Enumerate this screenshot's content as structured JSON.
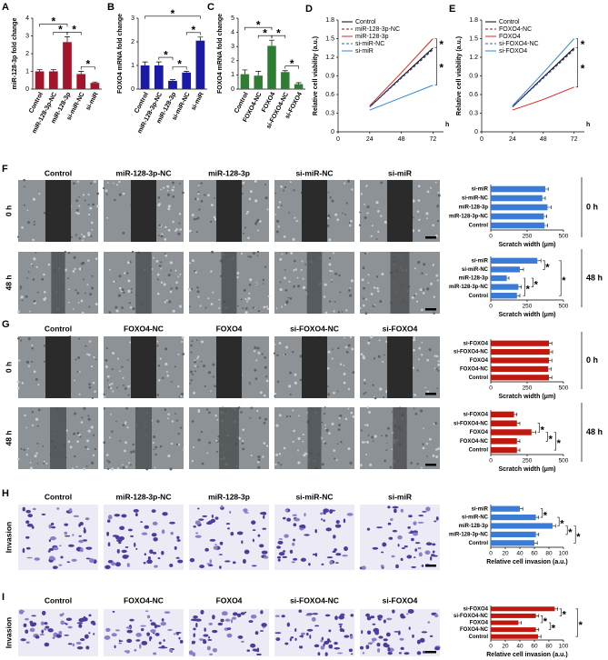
{
  "chart_data": [
    {
      "type": "bar",
      "panel": "A",
      "ylabel": "miR-128-3p fold change",
      "categories": [
        "Control",
        "miR-128-3p-NC",
        "miR-128-3p",
        "si-miR-NC",
        "si-miR"
      ],
      "values": [
        1.0,
        1.0,
        2.65,
        0.85,
        0.35
      ],
      "errors": [
        0.1,
        0.1,
        0.3,
        0.15,
        0.05
      ],
      "color": "#a3152a",
      "ylim": [
        0,
        4
      ],
      "yticks": [
        0,
        1,
        2,
        3,
        4
      ],
      "annotations": [
        "*",
        "*",
        "*",
        "*"
      ]
    },
    {
      "type": "bar",
      "panel": "B",
      "ylabel": "FOXO4 mRNA fold change",
      "categories": [
        "Control",
        "miR-128-3p-NC",
        "miR-128-3p",
        "si-miR-NC",
        "si-miR"
      ],
      "values": [
        1.0,
        1.0,
        0.35,
        0.7,
        2.05
      ],
      "errors": [
        0.15,
        0.15,
        0.05,
        0.05,
        0.15
      ],
      "color": "#1a1aa6",
      "ylim": [
        0,
        3
      ],
      "yticks": [
        0,
        1,
        2,
        3
      ],
      "annotations": [
        "*",
        "*",
        "*",
        "*"
      ]
    },
    {
      "type": "bar",
      "panel": "C",
      "ylabel": "FOXO4 mRNA fold change",
      "categories": [
        "Control",
        "FOXO4-NC",
        "FOXO4",
        "si-FOXO4-NC",
        "si-FOXO4"
      ],
      "values": [
        1.05,
        0.95,
        3.05,
        1.2,
        0.35
      ],
      "errors": [
        0.3,
        0.3,
        0.4,
        0.1,
        0.1
      ],
      "color": "#2e7d32",
      "ylim": [
        0,
        5
      ],
      "yticks": [
        0,
        1,
        2,
        3,
        4,
        5
      ],
      "annotations": [
        "*",
        "*",
        "*",
        "*"
      ]
    },
    {
      "type": "line",
      "panel": "D",
      "ylabel": "Relative cell viability (a.u.)",
      "xlabel": "h",
      "x": [
        24,
        48,
        72
      ],
      "xlim": [
        0,
        80
      ],
      "xticks": [
        0,
        24,
        48,
        72
      ],
      "ylim": [
        0,
        1.8
      ],
      "yticks": [
        0,
        0.3,
        0.6,
        0.9,
        1.2,
        1.5,
        1.8
      ],
      "series": [
        {
          "name": "Control",
          "color": "#000000",
          "dashed": false,
          "values": [
            0.4,
            0.88,
            1.35
          ]
        },
        {
          "name": "miR-128-3p-NC",
          "color": "#8b1a1a",
          "dashed": true,
          "values": [
            0.4,
            0.87,
            1.33
          ]
        },
        {
          "name": "miR-128-3p",
          "color": "#e02020",
          "dashed": false,
          "values": [
            0.42,
            0.95,
            1.5
          ]
        },
        {
          "name": "si-miR-NC",
          "color": "#1f5fbf",
          "dashed": true,
          "values": [
            0.4,
            0.86,
            1.32
          ]
        },
        {
          "name": "si-miR",
          "color": "#2e86de",
          "dashed": false,
          "values": [
            0.35,
            0.55,
            0.75
          ]
        }
      ],
      "annotations": [
        "*",
        "*"
      ]
    },
    {
      "type": "line",
      "panel": "E",
      "ylabel": "Relative cell viability (a.u.)",
      "xlabel": "h",
      "x": [
        24,
        48,
        72
      ],
      "xlim": [
        0,
        80
      ],
      "xticks": [
        0,
        24,
        48,
        72
      ],
      "ylim": [
        0,
        1.8
      ],
      "yticks": [
        0,
        0.3,
        0.6,
        0.9,
        1.2,
        1.5,
        1.8
      ],
      "series": [
        {
          "name": "Control",
          "color": "#000000",
          "dashed": false,
          "values": [
            0.4,
            0.88,
            1.35
          ]
        },
        {
          "name": "FOXO4-NC",
          "color": "#8b1a1a",
          "dashed": true,
          "values": [
            0.4,
            0.87,
            1.33
          ]
        },
        {
          "name": "FOXO4",
          "color": "#e02020",
          "dashed": false,
          "values": [
            0.35,
            0.52,
            0.72
          ]
        },
        {
          "name": "si-FOXO4-NC",
          "color": "#1f5fbf",
          "dashed": true,
          "values": [
            0.4,
            0.86,
            1.32
          ]
        },
        {
          "name": "si-FOXO4",
          "color": "#2e86de",
          "dashed": false,
          "values": [
            0.42,
            0.95,
            1.5
          ]
        }
      ],
      "annotations": [
        "*",
        "*"
      ]
    },
    {
      "type": "hbar",
      "side_label": "0 h",
      "xlabel": "Scratch width (μm)",
      "categories": [
        "Control",
        "miR-128-3p-NC",
        "miR-128-3p",
        "si-miR-NC",
        "si-miR"
      ],
      "values": [
        370,
        365,
        390,
        355,
        375
      ],
      "errors": [
        20,
        20,
        25,
        20,
        20
      ],
      "color": "#3a7bd5",
      "xlim": [
        0,
        500
      ],
      "xticks": [
        0,
        250,
        500
      ],
      "annotations": []
    },
    {
      "type": "hbar",
      "side_label": "48 h",
      "xlabel": "Scratch width (μm)",
      "categories": [
        "Control",
        "miR-128-3p-NC",
        "miR-128-3p",
        "si-miR-NC",
        "si-miR"
      ],
      "values": [
        180,
        190,
        110,
        200,
        320
      ],
      "errors": [
        20,
        20,
        15,
        25,
        25
      ],
      "color": "#3a7bd5",
      "xlim": [
        0,
        500
      ],
      "xticks": [
        0,
        250,
        500
      ],
      "annotations": [
        "*",
        "*",
        "*",
        "*"
      ]
    },
    {
      "type": "hbar",
      "side_label": "0 h",
      "xlabel": "Scratch width (μm)",
      "categories": [
        "Control",
        "FOXO4-NC",
        "FOXO4",
        "si-FOXO4-NC",
        "si-FOXO4"
      ],
      "values": [
        400,
        395,
        400,
        405,
        400
      ],
      "errors": [
        20,
        20,
        20,
        20,
        20
      ],
      "color": "#c0180f",
      "xlim": [
        0,
        500
      ],
      "xticks": [
        0,
        250,
        500
      ],
      "annotations": []
    },
    {
      "type": "hbar",
      "side_label": "48 h",
      "xlabel": "Scratch width (μm)",
      "categories": [
        "Control",
        "FOXO4-NC",
        "FOXO4",
        "si-FOXO4-NC",
        "si-FOXO4"
      ],
      "values": [
        180,
        180,
        280,
        180,
        160
      ],
      "errors": [
        20,
        20,
        30,
        20,
        20
      ],
      "color": "#c0180f",
      "xlim": [
        0,
        500
      ],
      "xticks": [
        0,
        250,
        500
      ],
      "annotations": [
        "*",
        "*",
        "*"
      ]
    },
    {
      "type": "hbar",
      "row_label": "Invasion",
      "xlabel": "Relative cell invasion (a.u.)",
      "categories": [
        "Control",
        "miR-128-3p-NC",
        "miR-128-3p",
        "si-miR-NC",
        "si-miR"
      ],
      "values": [
        60,
        62,
        85,
        62,
        40
      ],
      "errors": [
        4,
        4,
        4,
        4,
        4
      ],
      "color": "#3a7bd5",
      "xlim": [
        0,
        100
      ],
      "xticks": [
        0,
        20,
        40,
        60,
        80,
        100
      ],
      "annotations": [
        "*",
        "*",
        "*",
        "*"
      ]
    },
    {
      "type": "hbar",
      "xlabel": "Relative cell invasion (a.u.)",
      "categories": [
        "Control",
        "FOXO4-NC",
        "FOXO4",
        "si-FOXO4-NC",
        "si-FOXO4"
      ],
      "values": [
        65,
        62,
        38,
        62,
        88
      ],
      "errors": [
        4,
        4,
        4,
        4,
        4
      ],
      "color": "#c0180f",
      "xlim": [
        0,
        100
      ],
      "xticks": [
        0,
        20,
        40,
        60,
        80,
        100
      ],
      "annotations": [
        "*",
        "*",
        "*",
        "*"
      ]
    }
  ],
  "image_panels": [
    {
      "panel": "F",
      "kind": "scratch",
      "columns": [
        "Control",
        "miR-128-3p-NC",
        "miR-128-3p",
        "si-miR-NC",
        "si-miR"
      ],
      "rows": [
        "0 h",
        "48 h"
      ]
    },
    {
      "panel": "G",
      "kind": "scratch",
      "columns": [
        "Control",
        "FOXO4-NC",
        "FOXO4",
        "si-FOXO4-NC",
        "si-FOXO4"
      ],
      "rows": [
        "0 h",
        "48 h"
      ]
    },
    {
      "panel": "H",
      "kind": "invasion",
      "columns": [
        "Control",
        "miR-128-3p-NC",
        "miR-128-3p",
        "si-miR-NC",
        "si-miR"
      ],
      "rows": [
        "Invasion"
      ]
    },
    {
      "panel": "I",
      "kind": "invasion",
      "columns": [
        "Control",
        "FOXO4-NC",
        "FOXO4",
        "si-FOXO4-NC",
        "si-FOXO4"
      ],
      "rows": [
        "Invasion"
      ]
    }
  ]
}
